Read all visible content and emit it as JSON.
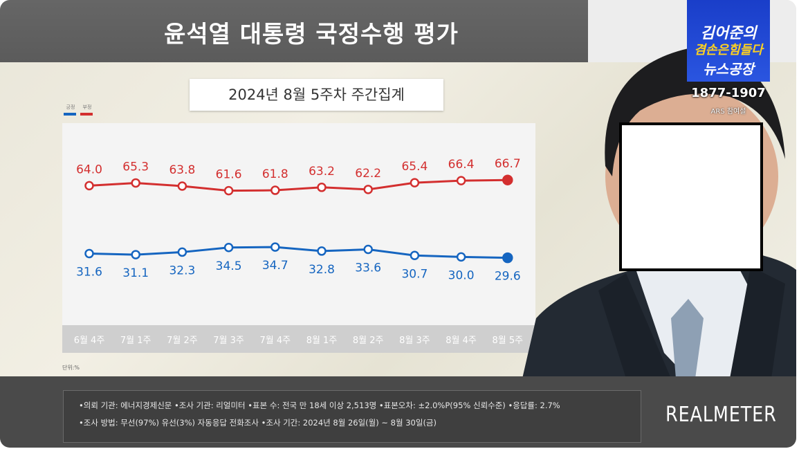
{
  "header": {
    "title": "윤석열 대통령 국정수행 평가",
    "subtitle": "2024년 8월 5주차 주간집계",
    "unit_label": "단위:%"
  },
  "legend": [
    {
      "label": "긍정",
      "color": "#1565c0"
    },
    {
      "label": "부정",
      "color": "#d32f2f"
    }
  ],
  "chart_data": {
    "type": "line",
    "title": "윤석열 대통령 국정수행 평가",
    "subtitle": "2024년 8월 5주차 주간집계",
    "unit": "%",
    "categories": [
      "6월 4주",
      "7월 1주",
      "7월 2주",
      "7월 3주",
      "7월 4주",
      "8월 1주",
      "8월 2주",
      "8월 3주",
      "8월 4주",
      "8월 5주"
    ],
    "series": [
      {
        "name": "부정",
        "color": "#d32f2f",
        "values": [
          64.0,
          65.3,
          63.8,
          61.6,
          61.8,
          63.2,
          62.2,
          65.4,
          66.4,
          66.7
        ]
      },
      {
        "name": "긍정",
        "color": "#1565c0",
        "values": [
          31.6,
          31.1,
          32.3,
          34.5,
          34.7,
          32.8,
          33.6,
          30.7,
          30.0,
          29.6
        ]
      }
    ],
    "legend_position": "top-left",
    "grid": false
  },
  "overlay": {
    "show_logo_line1": "김어준의",
    "show_logo_line2": "겸손은힘들다",
    "show_logo_line3": "뉴스공장",
    "phone": "1877-1907",
    "ars": "ARS 참여설",
    "logo_color": "#1e44d6"
  },
  "footer": {
    "line1": "•의뢰 기관: 에너지경제신문 •조사 기관: 리얼미터 •표본 수: 전국 만 18세 이상 2,513명 •표본오차: ±2.0%P(95% 신뢰수준) •응답률: 2.7%",
    "line2": "•조사 방법: 무선(97%) 유선(3%) 자동응답 전화조사 •조사 기간: 2024년 8월 26일(월) ~ 8월 30일(금)",
    "brand": "REALMETER"
  }
}
